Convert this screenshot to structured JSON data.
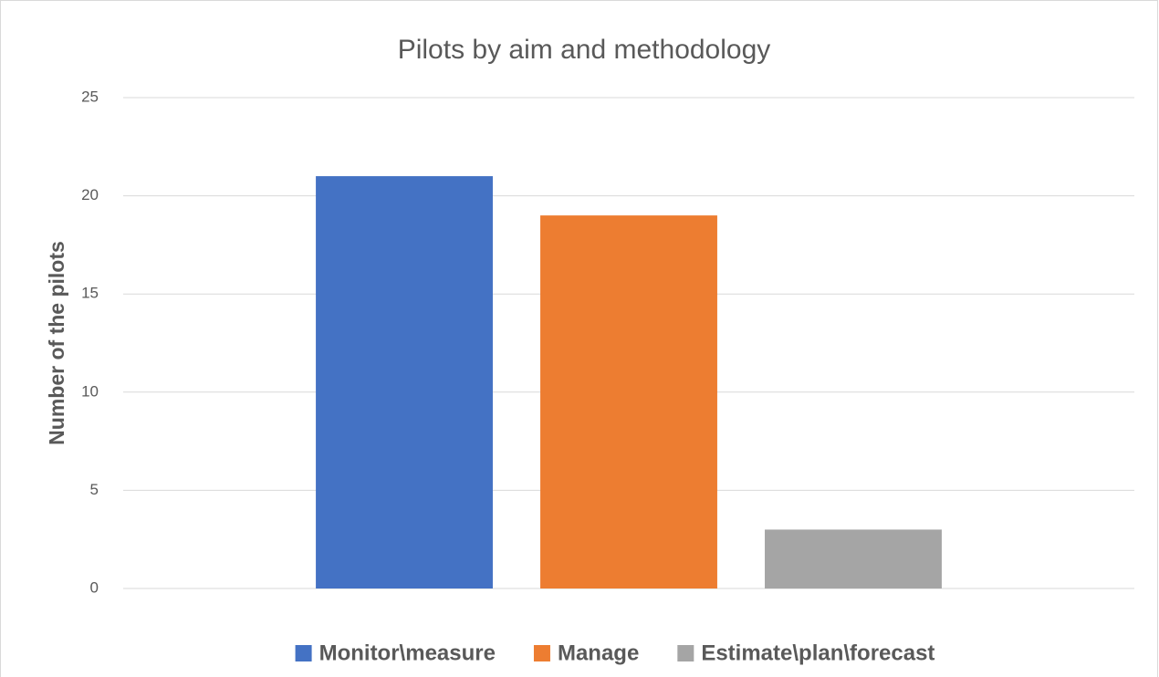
{
  "chart_data": {
    "type": "bar",
    "title": "Pilots by aim and methodology",
    "y_label": "Number of the pilots",
    "categories": [
      null
    ],
    "series": [
      {
        "name": "Monitor\\measure",
        "color": "#4472c4",
        "values": [
          21
        ]
      },
      {
        "name": "Manage",
        "color": "#ed7d31",
        "values": [
          19
        ]
      },
      {
        "name": "Estimate\\plan\\forecast",
        "color": "#a5a5a5",
        "values": [
          3
        ]
      }
    ],
    "ylim": [
      0,
      25
    ],
    "yticks": [
      0,
      5,
      10,
      15,
      20,
      25
    ],
    "grid": true,
    "legend": "bottom"
  }
}
